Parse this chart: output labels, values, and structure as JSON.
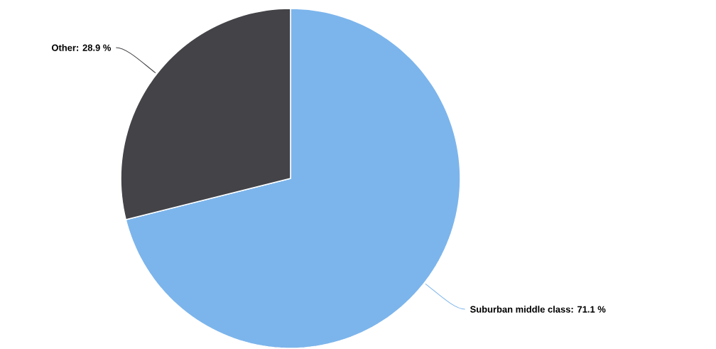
{
  "chart_data": {
    "type": "pie",
    "categories": [
      "Suburban middle class",
      "Other"
    ],
    "values": [
      71.1,
      28.9
    ],
    "colors": [
      "#7cb5ec",
      "#434348"
    ],
    "value_labels": [
      ": 71.1 %",
      ": 28.9 %"
    ]
  }
}
